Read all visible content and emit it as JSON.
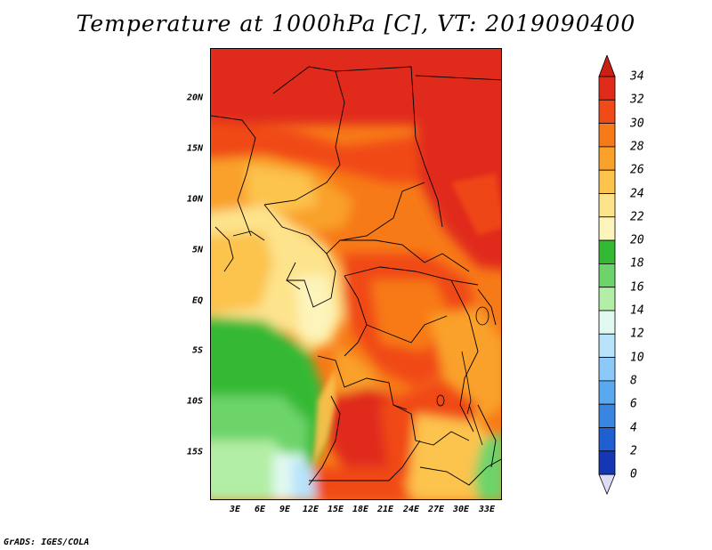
{
  "title": "Temperature at 1000hPa [C], VT: 2019090400",
  "credit": "GrADS: IGES/COLA",
  "lat_labels": [
    "20N",
    "15N",
    "10N",
    "5N",
    "EQ",
    "5S",
    "10S",
    "15S"
  ],
  "lon_labels": [
    "3E",
    "6E",
    "9E",
    "12E",
    "15E",
    "18E",
    "21E",
    "24E",
    "27E",
    "30E",
    "33E"
  ],
  "colorbar": {
    "labels": [
      "34",
      "32",
      "30",
      "28",
      "26",
      "24",
      "22",
      "20",
      "18",
      "16",
      "14",
      "12",
      "10",
      "8",
      "6",
      "4",
      "2",
      "0"
    ],
    "colors": [
      "#e02a1a",
      "#f04a18",
      "#f77a18",
      "#f9a12a",
      "#fcc34d",
      "#fde38c",
      "#fdf4bb",
      "#35b935",
      "#6dd46b",
      "#b2eea5",
      "#e2f9f1",
      "#b8e3fb",
      "#8dc9f8",
      "#5aa9ee",
      "#3a85e2",
      "#1f5fd2",
      "#1537b4",
      "#0d1a87",
      "#081061"
    ],
    "min_color": "#dcdcf6",
    "max_color": "#cc1f14"
  }
}
